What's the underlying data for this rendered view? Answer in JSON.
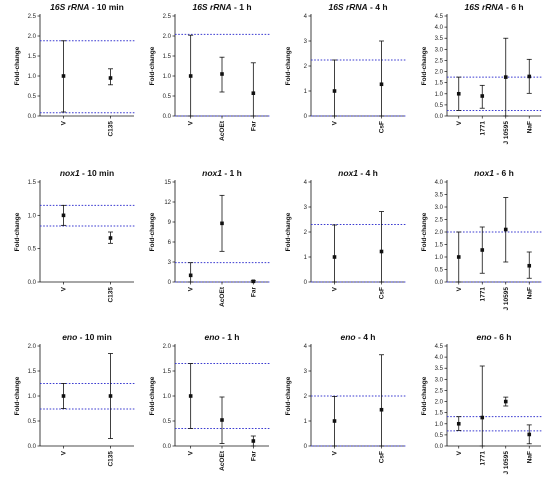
{
  "chart_data": [
    {
      "type": "scatter",
      "title_gene": "16S rRNA",
      "title_time": "10 min",
      "ylabel": "Fold-change",
      "ylim": [
        0,
        2.5
      ],
      "yticks": [
        0.0,
        0.5,
        1.0,
        1.5,
        2.0,
        2.5
      ],
      "ytick_labels": [
        "0.0",
        "0.5",
        "1.0",
        "1.5",
        "2.0",
        "2.5"
      ],
      "categories": [
        "V",
        "C135"
      ],
      "means": [
        1.0,
        0.95
      ],
      "err_low": [
        0.1,
        0.78
      ],
      "err_high": [
        1.88,
        1.18
      ],
      "ref_lines": [
        1.88,
        0.08
      ],
      "ref_color": "#3b3bd1"
    },
    {
      "type": "scatter",
      "title_gene": "16S rRNA",
      "title_time": "1 h",
      "ylabel": "Fold-change",
      "ylim": [
        0,
        2.5
      ],
      "yticks": [
        0.0,
        0.5,
        1.0,
        1.5,
        2.0,
        2.5
      ],
      "ytick_labels": [
        "0.0",
        "0.5",
        "1.0",
        "1.5",
        "2.0",
        "2.5"
      ],
      "categories": [
        "V",
        "AcOEt",
        "Far"
      ],
      "means": [
        1.0,
        1.05,
        0.57
      ],
      "err_low": [
        0.0,
        0.6,
        0.0
      ],
      "err_high": [
        2.02,
        1.47,
        1.33
      ],
      "ref_lines": [
        2.04,
        0.0
      ],
      "ref_color": "#3b3bd1"
    },
    {
      "type": "scatter",
      "title_gene": "16S rRNA",
      "title_time": "4 h",
      "ylabel": "Fold-change",
      "ylim": [
        0,
        4
      ],
      "yticks": [
        0,
        1,
        2,
        3,
        4
      ],
      "ytick_labels": [
        "0",
        "1",
        "2",
        "3",
        "4"
      ],
      "categories": [
        "V",
        "CsF"
      ],
      "means": [
        1.0,
        1.27
      ],
      "err_low": [
        0.0,
        0.0
      ],
      "err_high": [
        2.24,
        3.0
      ],
      "ref_lines": [
        2.24,
        0.0
      ],
      "ref_color": "#3b3bd1"
    },
    {
      "type": "scatter",
      "title_gene": "16S rRNA",
      "title_time": "6 h",
      "ylabel": "Fold-change",
      "ylim": [
        0,
        4.5
      ],
      "yticks": [
        0.0,
        0.5,
        1.0,
        1.5,
        2.0,
        2.5,
        3.0,
        3.5,
        4.0,
        4.5
      ],
      "ytick_labels": [
        "0.0",
        "0.5",
        "1.0",
        "1.5",
        "2.0",
        "2.5",
        "3.0",
        "3.5",
        "4.0",
        "4.5"
      ],
      "categories": [
        "V",
        "1771",
        "J 10595",
        "NaF"
      ],
      "means": [
        1.0,
        0.9,
        1.75,
        1.78
      ],
      "err_low": [
        0.25,
        0.35,
        0.0,
        1.02
      ],
      "err_high": [
        1.75,
        1.38,
        3.5,
        2.55
      ],
      "ref_lines": [
        1.75,
        0.25
      ],
      "ref_color": "#3b3bd1"
    },
    {
      "type": "scatter",
      "title_gene": "nox1",
      "title_time": "10 min",
      "ylabel": "Fold-change",
      "ylim": [
        0,
        1.5
      ],
      "yticks": [
        0.0,
        0.5,
        1.0,
        1.5
      ],
      "ytick_labels": [
        "0.0",
        "0.5",
        "1.0",
        "1.5"
      ],
      "categories": [
        "V",
        "C135"
      ],
      "means": [
        1.0,
        0.66
      ],
      "err_low": [
        0.85,
        0.58
      ],
      "err_high": [
        1.15,
        0.75
      ],
      "ref_lines": [
        1.15,
        0.84
      ],
      "ref_color": "#3b3bd1"
    },
    {
      "type": "scatter",
      "title_gene": "nox1",
      "title_time": "1 h",
      "ylabel": "Fold-change",
      "ylim": [
        0,
        15
      ],
      "yticks": [
        0,
        3,
        6,
        9,
        12,
        15
      ],
      "ytick_labels": [
        "0",
        "3",
        "6",
        "9",
        "12",
        "15"
      ],
      "categories": [
        "V",
        "AcOEt",
        "Far"
      ],
      "means": [
        1.0,
        8.8,
        0.1
      ],
      "err_low": [
        0.0,
        4.6,
        0.0
      ],
      "err_high": [
        2.9,
        13.0,
        0.2
      ],
      "ref_lines": [
        2.9,
        0.0
      ],
      "ref_color": "#3b3bd1"
    },
    {
      "type": "scatter",
      "title_gene": "nox1",
      "title_time": "4 h",
      "ylabel": "Fold-change",
      "ylim": [
        0,
        4
      ],
      "yticks": [
        0,
        1,
        2,
        3,
        4
      ],
      "ytick_labels": [
        "0",
        "1",
        "2",
        "3",
        "4"
      ],
      "categories": [
        "V",
        "CsF"
      ],
      "means": [
        1.0,
        1.22
      ],
      "err_low": [
        0.0,
        0.0
      ],
      "err_high": [
        2.28,
        2.82
      ],
      "ref_lines": [
        2.3,
        0.0
      ],
      "ref_color": "#3b3bd1"
    },
    {
      "type": "scatter",
      "title_gene": "nox1",
      "title_time": "6 h",
      "ylabel": "Fold-change",
      "ylim": [
        0,
        4
      ],
      "yticks": [
        0.0,
        0.5,
        1.0,
        1.5,
        2.0,
        2.5,
        3.0,
        3.5,
        4.0
      ],
      "ytick_labels": [
        "0.0",
        "0.5",
        "1.0",
        "1.5",
        "2.0",
        "2.5",
        "3.0",
        "3.5",
        "4.0"
      ],
      "categories": [
        "V",
        "1771",
        "J 10595",
        "NaF"
      ],
      "means": [
        1.0,
        1.28,
        2.1,
        0.65
      ],
      "err_low": [
        0.0,
        0.35,
        0.8,
        0.15
      ],
      "err_high": [
        2.0,
        2.2,
        3.38,
        1.2
      ],
      "ref_lines": [
        2.0,
        0.0
      ],
      "ref_color": "#3b3bd1"
    },
    {
      "type": "scatter",
      "title_gene": "eno",
      "title_time": "10 min",
      "ylabel": "Fold-change",
      "ylim": [
        0,
        2.0
      ],
      "yticks": [
        0.0,
        0.5,
        1.0,
        1.5,
        2.0
      ],
      "ytick_labels": [
        "0.0",
        "0.5",
        "1.0",
        "1.5",
        "2.0"
      ],
      "categories": [
        "V",
        "C135"
      ],
      "means": [
        1.0,
        1.0
      ],
      "err_low": [
        0.75,
        0.15
      ],
      "err_high": [
        1.25,
        1.85
      ],
      "ref_lines": [
        1.25,
        0.74
      ],
      "ref_color": "#3b3bd1"
    },
    {
      "type": "scatter",
      "title_gene": "eno",
      "title_time": "1 h",
      "ylabel": "Fold-change",
      "ylim": [
        0,
        2.0
      ],
      "yticks": [
        0.0,
        0.5,
        1.0,
        1.5,
        2.0
      ],
      "ytick_labels": [
        "0.0",
        "0.5",
        "1.0",
        "1.5",
        "2.0"
      ],
      "categories": [
        "V",
        "AcOEt",
        "Far"
      ],
      "means": [
        1.0,
        0.52,
        0.1
      ],
      "err_low": [
        0.35,
        0.05,
        0.0
      ],
      "err_high": [
        1.65,
        0.98,
        0.2
      ],
      "ref_lines": [
        1.65,
        0.35
      ],
      "ref_color": "#3b3bd1"
    },
    {
      "type": "scatter",
      "title_gene": "eno",
      "title_time": "4 h",
      "ylabel": "Fold-change",
      "ylim": [
        0,
        4
      ],
      "yticks": [
        0,
        1,
        2,
        3,
        4
      ],
      "ytick_labels": [
        "0",
        "1",
        "2",
        "3",
        "4"
      ],
      "categories": [
        "V",
        "CsF"
      ],
      "means": [
        1.0,
        1.45
      ],
      "err_low": [
        0.0,
        0.0
      ],
      "err_high": [
        1.98,
        3.65
      ],
      "ref_lines": [
        2.0,
        0.0
      ],
      "ref_color": "#3b3bd1"
    },
    {
      "type": "scatter",
      "title_gene": "eno",
      "title_time": "6 h",
      "ylabel": "Fold-change",
      "ylim": [
        0,
        4.5
      ],
      "yticks": [
        0.0,
        0.5,
        1.0,
        1.5,
        2.0,
        2.5,
        3.0,
        3.5,
        4.0,
        4.5
      ],
      "ytick_labels": [
        "0.0",
        "0.5",
        "1.0",
        "1.5",
        "2.0",
        "2.5",
        "3.0",
        "3.5",
        "4.0",
        "4.5"
      ],
      "categories": [
        "V",
        "1771",
        "J 10595",
        "NaF"
      ],
      "means": [
        1.0,
        1.28,
        2.0,
        0.52
      ],
      "err_low": [
        0.7,
        0.0,
        1.8,
        0.1
      ],
      "err_high": [
        1.32,
        3.6,
        2.2,
        0.95
      ],
      "ref_lines": [
        1.32,
        0.68
      ],
      "ref_color": "#3b3bd1"
    }
  ]
}
